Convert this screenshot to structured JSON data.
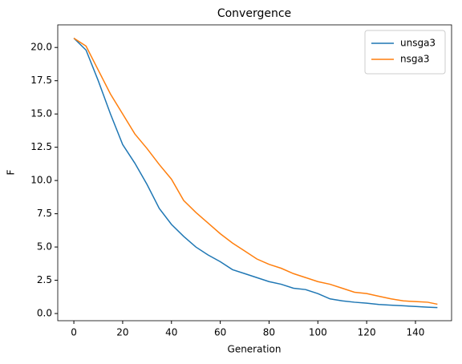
{
  "chart_data": {
    "type": "line",
    "title": "Convergence",
    "x_label": "Generation",
    "y_label": "F",
    "x": [
      0,
      5,
      10,
      15,
      20,
      25,
      30,
      35,
      40,
      45,
      50,
      55,
      60,
      65,
      70,
      75,
      80,
      85,
      90,
      95,
      100,
      105,
      110,
      115,
      120,
      125,
      130,
      135,
      140,
      145,
      149
    ],
    "series": [
      {
        "name": "unsga3",
        "color": "#1f77b4",
        "values": [
          20.7,
          19.8,
          17.5,
          15.0,
          12.7,
          11.3,
          9.7,
          7.9,
          6.7,
          5.8,
          5.0,
          4.4,
          3.9,
          3.3,
          3.0,
          2.7,
          2.4,
          2.2,
          1.9,
          1.8,
          1.5,
          1.1,
          0.95,
          0.85,
          0.78,
          0.68,
          0.63,
          0.58,
          0.53,
          0.48,
          0.45
        ]
      },
      {
        "name": "nsga3",
        "color": "#ff7f0e",
        "values": [
          20.7,
          20.1,
          18.3,
          16.5,
          15.0,
          13.5,
          12.4,
          11.2,
          10.1,
          8.5,
          7.6,
          6.8,
          6.0,
          5.3,
          4.7,
          4.1,
          3.7,
          3.4,
          3.0,
          2.7,
          2.4,
          2.2,
          1.9,
          1.6,
          1.5,
          1.3,
          1.1,
          0.95,
          0.9,
          0.85,
          0.7
        ]
      }
    ],
    "xlim": [
      -6.6,
      154.8
    ],
    "ylim": [
      -0.54,
      21.7
    ],
    "xticks": [
      0,
      20,
      40,
      60,
      80,
      100,
      120,
      140
    ],
    "yticks": [
      {
        "value": 0,
        "label": "0.0"
      },
      2.5,
      {
        "value": 5,
        "label": "5.0"
      },
      7.5,
      {
        "value": 10,
        "label": "10.0"
      },
      12.5,
      {
        "value": 15,
        "label": "15.0"
      },
      17.5,
      {
        "value": 20,
        "label": "20.0"
      }
    ],
    "legend": "upper right"
  }
}
